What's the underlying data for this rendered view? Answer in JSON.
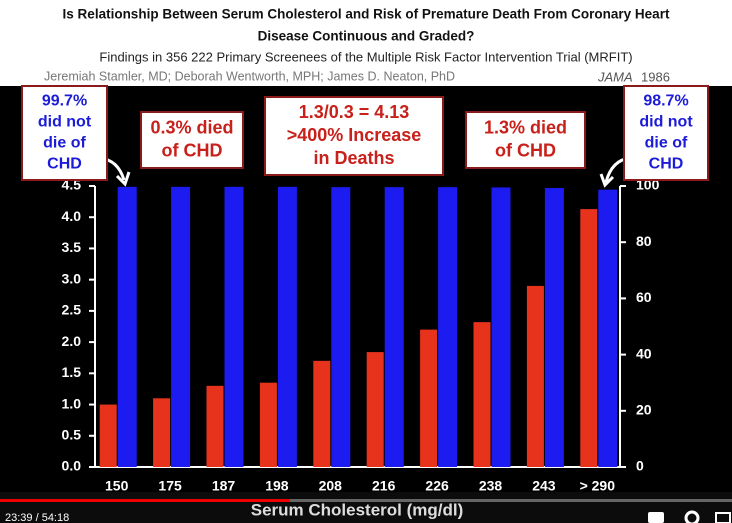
{
  "chart_data": {
    "type": "bar",
    "title": [
      "Is Relationship Between Serum Cholesterol and Risk of Premature Death From Coronary Heart",
      "Disease Continuous and Graded?"
    ],
    "subtitle": "Findings in 356 222 Primary Screenees of the Multiple Risk Factor Intervention Trial (MRFIT)",
    "authors": "Jeremiah Stamler, MD; Deborah Wentworth, MPH; James D. Neaton, PhD",
    "journal": "JAMA",
    "year": "1986",
    "annotations": [
      [
        "99.7%",
        "did not",
        "die of",
        "CHD"
      ],
      [
        "0.3% died",
        "of CHD"
      ],
      [
        "1.3/0.3 = 4.13",
        ">400% Increase",
        "in Deaths"
      ],
      [
        "1.3% died",
        "of CHD"
      ],
      [
        "98.7%",
        "did not",
        "die of",
        "CHD"
      ]
    ],
    "categories": [
      "150",
      "175",
      "187",
      "198",
      "208",
      "216",
      "226",
      "238",
      "243",
      "> 290"
    ],
    "series": [
      {
        "color": "#e8331c",
        "values": [
          1.0,
          1.1,
          1.3,
          1.35,
          1.7,
          1.84,
          2.2,
          2.32,
          2.9,
          4.13
        ]
      },
      {
        "color": "#1c1cf0",
        "axis": "y2",
        "values": [
          99.7,
          99.7,
          99.7,
          99.7,
          99.6,
          99.6,
          99.6,
          99.5,
          99.3,
          98.7
        ]
      }
    ],
    "xlabel": "Serum Cholesterol (mg/dl)",
    "ylim": [
      0,
      4.5
    ],
    "yticks": [
      {
        "value": 0,
        "label": "0.0"
      },
      0.5,
      {
        "value": 1,
        "label": "1.0"
      },
      1.5,
      {
        "value": 2,
        "label": "2.0"
      },
      2.5,
      {
        "value": 3,
        "label": "3.0"
      },
      3.5,
      {
        "value": 4,
        "label": "4.0"
      },
      4.5
    ],
    "y2lim": [
      0,
      100
    ],
    "y2ticks": [
      0,
      20,
      40,
      60,
      80,
      100
    ]
  },
  "player": {
    "time": "23:39 / 54:18"
  }
}
